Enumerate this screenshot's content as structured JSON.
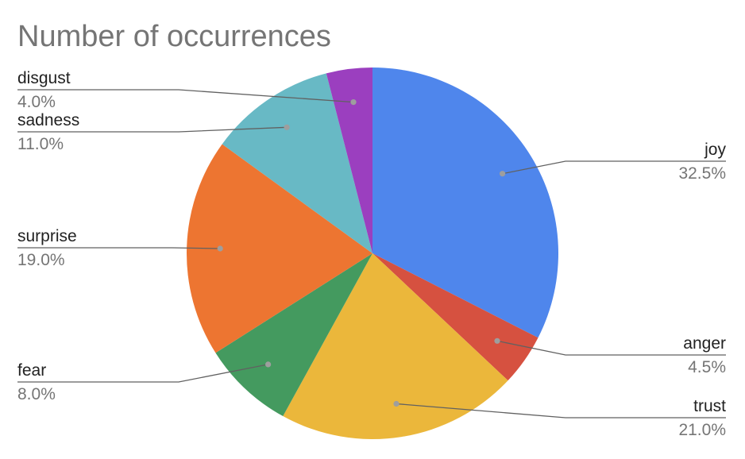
{
  "chart_data": {
    "type": "pie",
    "title": "Number of occurrences",
    "slices": [
      {
        "label": "joy",
        "value": 32.5,
        "display": "32.5%",
        "color": "#4f86ec",
        "side": "right"
      },
      {
        "label": "anger",
        "value": 4.5,
        "display": "4.5%",
        "color": "#d65140",
        "side": "right"
      },
      {
        "label": "trust",
        "value": 21.0,
        "display": "21.0%",
        "color": "#ebb73b",
        "side": "right"
      },
      {
        "label": "fear",
        "value": 8.0,
        "display": "8.0%",
        "color": "#449a5f",
        "side": "left"
      },
      {
        "label": "surprise",
        "value": 19.0,
        "display": "19.0%",
        "color": "#ed7531",
        "side": "left"
      },
      {
        "label": "sadness",
        "value": 11.0,
        "display": "11.0%",
        "color": "#68b9c5",
        "side": "left"
      },
      {
        "label": "disgust",
        "value": 4.0,
        "display": "4.0%",
        "color": "#9b3fbf",
        "side": "left"
      }
    ],
    "start_angle": "12 o'clock",
    "direction": "clockwise",
    "legend": "labels with leader lines"
  }
}
